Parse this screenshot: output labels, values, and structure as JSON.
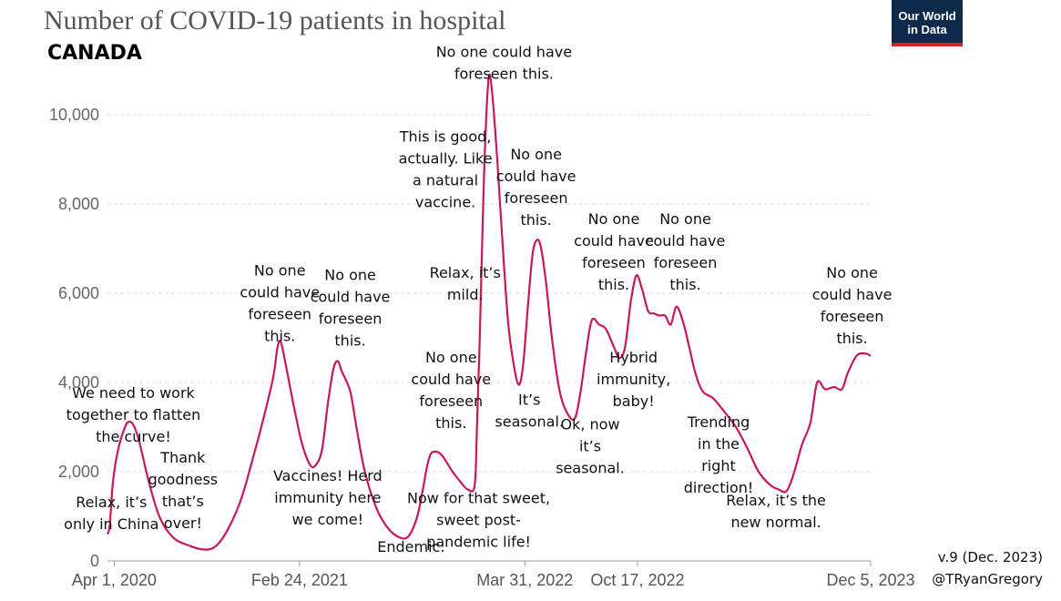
{
  "header": {
    "title": "Number of COVID-19 patients in hospital",
    "subtitle": "CANADA",
    "logo_line1": "Our World",
    "logo_line2": "in Data"
  },
  "footer": {
    "version": "v.9 (Dec. 2023)",
    "handle": "@TRyanGregory"
  },
  "chart_data": {
    "type": "line",
    "title": "Number of COVID-19 patients in hospital",
    "subtitle": "CANADA",
    "xlabel": "",
    "ylabel": "",
    "x_range": [
      "2020-03-20",
      "2023-12-05"
    ],
    "ylim": [
      0,
      10800
    ],
    "y_ticks": [
      0,
      2000,
      4000,
      6000,
      8000,
      10000
    ],
    "y_tick_labels": [
      "0",
      "2,000",
      "4,000",
      "6,000",
      "8,000",
      "10,000"
    ],
    "x_ticks": [
      {
        "date": "2020-04-01",
        "label": "Apr 1, 2020"
      },
      {
        "date": "2021-02-24",
        "label": "Feb 24, 2021"
      },
      {
        "date": "2022-03-31",
        "label": "Mar 31, 2022"
      },
      {
        "date": "2022-10-17",
        "label": "Oct 17, 2022"
      },
      {
        "date": "2023-12-05",
        "label": "Dec 5, 2023"
      }
    ],
    "grid": true,
    "line_color": "#c8175e",
    "series": [
      {
        "name": "Canada",
        "points": [
          [
            "2020-03-20",
            600
          ],
          [
            "2020-03-24",
            800
          ],
          [
            "2020-03-30",
            1800
          ],
          [
            "2020-04-08",
            2500
          ],
          [
            "2020-04-20",
            3000
          ],
          [
            "2020-04-27",
            3120
          ],
          [
            "2020-05-05",
            3050
          ],
          [
            "2020-05-15",
            2700
          ],
          [
            "2020-06-01",
            1800
          ],
          [
            "2020-06-20",
            1000
          ],
          [
            "2020-07-15",
            520
          ],
          [
            "2020-08-15",
            330
          ],
          [
            "2020-09-05",
            260
          ],
          [
            "2020-09-25",
            300
          ],
          [
            "2020-10-15",
            600
          ],
          [
            "2020-11-10",
            1300
          ],
          [
            "2020-12-01",
            2200
          ],
          [
            "2020-12-20",
            3100
          ],
          [
            "2021-01-08",
            4100
          ],
          [
            "2021-01-16",
            4800
          ],
          [
            "2021-01-22",
            4900
          ],
          [
            "2021-02-01",
            4300
          ],
          [
            "2021-02-15",
            3400
          ],
          [
            "2021-03-01",
            2600
          ],
          [
            "2021-03-15",
            2150
          ],
          [
            "2021-03-25",
            2150
          ],
          [
            "2021-04-05",
            2500
          ],
          [
            "2021-04-15",
            3500
          ],
          [
            "2021-04-25",
            4300
          ],
          [
            "2021-05-03",
            4480
          ],
          [
            "2021-05-10",
            4250
          ],
          [
            "2021-05-25",
            3800
          ],
          [
            "2021-06-05",
            3000
          ],
          [
            "2021-06-20",
            2000
          ],
          [
            "2021-07-10",
            1200
          ],
          [
            "2021-07-30",
            750
          ],
          [
            "2021-08-20",
            530
          ],
          [
            "2021-09-05",
            550
          ],
          [
            "2021-09-20",
            950
          ],
          [
            "2021-10-01",
            1600
          ],
          [
            "2021-10-08",
            2100
          ],
          [
            "2021-10-15",
            2400
          ],
          [
            "2021-10-25",
            2450
          ],
          [
            "2021-11-05",
            2350
          ],
          [
            "2021-11-20",
            2050
          ],
          [
            "2021-12-05",
            1800
          ],
          [
            "2021-12-20",
            1600
          ],
          [
            "2022-01-01",
            1700
          ],
          [
            "2022-01-05",
            3000
          ],
          [
            "2022-01-10",
            5000
          ],
          [
            "2022-01-15",
            7500
          ],
          [
            "2022-01-20",
            9500
          ],
          [
            "2022-01-26",
            10850
          ],
          [
            "2022-02-01",
            10500
          ],
          [
            "2022-02-10",
            9000
          ],
          [
            "2022-02-20",
            7000
          ],
          [
            "2022-03-01",
            5400
          ],
          [
            "2022-03-10",
            4500
          ],
          [
            "2022-03-20",
            3950
          ],
          [
            "2022-03-28",
            4400
          ],
          [
            "2022-04-06",
            5800
          ],
          [
            "2022-04-14",
            6900
          ],
          [
            "2022-04-22",
            7200
          ],
          [
            "2022-04-29",
            7000
          ],
          [
            "2022-05-08",
            6200
          ],
          [
            "2022-05-18",
            5000
          ],
          [
            "2022-06-01",
            3800
          ],
          [
            "2022-06-15",
            3300
          ],
          [
            "2022-06-28",
            3200
          ],
          [
            "2022-07-08",
            3800
          ],
          [
            "2022-07-18",
            4700
          ],
          [
            "2022-07-28",
            5400
          ],
          [
            "2022-08-10",
            5300
          ],
          [
            "2022-08-22",
            5200
          ],
          [
            "2022-09-05",
            4800
          ],
          [
            "2022-09-15",
            4550
          ],
          [
            "2022-09-25",
            4800
          ],
          [
            "2022-10-05",
            5800
          ],
          [
            "2022-10-15",
            6400
          ],
          [
            "2022-10-25",
            6100
          ],
          [
            "2022-11-05",
            5600
          ],
          [
            "2022-11-15",
            5550
          ],
          [
            "2022-11-25",
            5500
          ],
          [
            "2022-12-05",
            5500
          ],
          [
            "2022-12-15",
            5300
          ],
          [
            "2022-12-25",
            5700
          ],
          [
            "2023-01-05",
            5400
          ],
          [
            "2023-01-15",
            4900
          ],
          [
            "2023-01-28",
            4200
          ],
          [
            "2023-02-10",
            3800
          ],
          [
            "2023-02-28",
            3650
          ],
          [
            "2023-03-20",
            3350
          ],
          [
            "2023-04-10",
            3000
          ],
          [
            "2023-05-01",
            2500
          ],
          [
            "2023-05-20",
            2000
          ],
          [
            "2023-06-10",
            1700
          ],
          [
            "2023-06-25",
            1600
          ],
          [
            "2023-07-08",
            1560
          ],
          [
            "2023-07-20",
            1900
          ],
          [
            "2023-08-05",
            2600
          ],
          [
            "2023-08-20",
            3100
          ],
          [
            "2023-09-01",
            4000
          ],
          [
            "2023-09-15",
            3850
          ],
          [
            "2023-10-01",
            3900
          ],
          [
            "2023-10-15",
            3850
          ],
          [
            "2023-10-25",
            4200
          ],
          [
            "2023-11-10",
            4600
          ],
          [
            "2023-11-25",
            4650
          ],
          [
            "2023-12-05",
            4600
          ]
        ]
      }
    ],
    "annotations": [
      {
        "date": "2020-03-27",
        "value": 1200,
        "lines": [
          "Relax, it’s",
          "only in China"
        ]
      },
      {
        "date": "2020-05-05",
        "value": 3650,
        "lines": [
          "We need to work",
          "together to flatten",
          "the curve!"
        ]
      },
      {
        "date": "2020-08-01",
        "value": 2200,
        "lines": [
          "Thank",
          "goodness",
          "that’s",
          "over!"
        ]
      },
      {
        "date": "2021-01-20",
        "value": 6400,
        "lines": [
          "No one",
          "could have",
          "foreseen",
          "this."
        ]
      },
      {
        "date": "2021-04-15",
        "value": 1800,
        "lines": [
          "Vaccines! Herd",
          "immunity here",
          "we come!"
        ]
      },
      {
        "date": "2021-05-25",
        "value": 6300,
        "lines": [
          "No one",
          "could have",
          "foreseen",
          "this."
        ]
      },
      {
        "date": "2021-09-10",
        "value": 200,
        "lines": [
          "Endemic."
        ]
      },
      {
        "date": "2021-11-20",
        "value": 4450,
        "lines": [
          "No one",
          "could have",
          "foreseen",
          "this."
        ]
      },
      {
        "date": "2021-12-15",
        "value": 6350,
        "lines": [
          "Relax, it’s",
          "mild."
        ]
      },
      {
        "date": "2021-11-10",
        "value": 9400,
        "lines": [
          "This is good,",
          "actually. Like",
          "a natural",
          "vaccine."
        ]
      },
      {
        "date": "2022-01-08",
        "value": 1300,
        "lines": [
          "Now for that sweet,",
          "sweet post-",
          "pandemic life!"
        ]
      },
      {
        "date": "2022-02-22",
        "value": 11300,
        "lines": [
          "No one could have",
          "foreseen this."
        ]
      },
      {
        "date": "2022-04-08",
        "value": 3500,
        "lines": [
          "It’s",
          "seasonal."
        ]
      },
      {
        "date": "2022-04-20",
        "value": 9000,
        "lines": [
          "No one",
          "could have",
          "foreseen",
          "this."
        ]
      },
      {
        "date": "2022-07-25",
        "value": 2950,
        "lines": [
          "Ok, now",
          "it’s",
          "seasonal."
        ]
      },
      {
        "date": "2022-09-05",
        "value": 7550,
        "lines": [
          "No one",
          "could have",
          "foreseen",
          "this."
        ]
      },
      {
        "date": "2022-10-10",
        "value": 4450,
        "lines": [
          "Hybrid",
          "immunity,",
          "baby!"
        ]
      },
      {
        "date": "2023-01-10",
        "value": 7550,
        "lines": [
          "No one",
          "could have",
          "foreseen",
          "this."
        ]
      },
      {
        "date": "2023-03-10",
        "value": 3000,
        "lines": [
          "Trending",
          "in the",
          "right",
          "direction!"
        ]
      },
      {
        "date": "2023-06-20",
        "value": 1250,
        "lines": [
          "Relax, it’s the",
          "new normal."
        ]
      },
      {
        "date": "2023-11-02",
        "value": 6350,
        "lines": [
          "No one",
          "could have",
          "foreseen",
          "this."
        ]
      }
    ]
  }
}
